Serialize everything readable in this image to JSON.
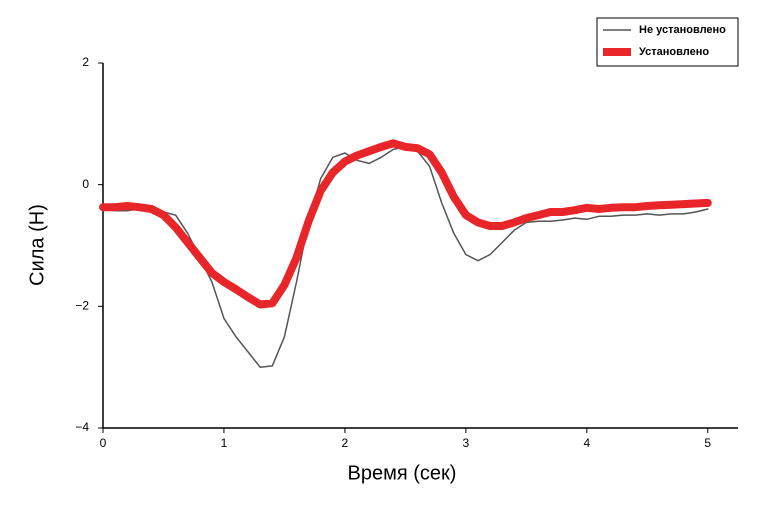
{
  "chart_data": {
    "type": "line",
    "x_label": "Время (сек)",
    "y_label": "Сила (Н)",
    "x": [
      0,
      0.1,
      0.2,
      0.3,
      0.4,
      0.5,
      0.6,
      0.7,
      0.8,
      0.9,
      1,
      1.1,
      1.2,
      1.3,
      1.4,
      1.5,
      1.6,
      1.7,
      1.8,
      1.9,
      2,
      2.1,
      2.2,
      2.3,
      2.4,
      2.5,
      2.6,
      2.7,
      2.8,
      2.9,
      3,
      3.1,
      3.2,
      3.3,
      3.4,
      3.5,
      3.6,
      3.7,
      3.8,
      3.9,
      4,
      4.1,
      4.2,
      4.3,
      4.4,
      4.5,
      4.6,
      4.7,
      4.8,
      4.9,
      5
    ],
    "series": [
      {
        "name": "Не установлено",
        "color": "#555555",
        "width": 1.5,
        "values": [
          -0.4,
          -0.43,
          -0.43,
          -0.4,
          -0.42,
          -0.45,
          -0.5,
          -0.8,
          -1.2,
          -1.6,
          -2.2,
          -2.5,
          -2.75,
          -3.0,
          -2.98,
          -2.5,
          -1.6,
          -0.6,
          0.1,
          0.45,
          0.52,
          0.4,
          0.35,
          0.45,
          0.58,
          0.62,
          0.55,
          0.3,
          -0.3,
          -0.8,
          -1.15,
          -1.25,
          -1.15,
          -0.95,
          -0.75,
          -0.62,
          -0.6,
          -0.6,
          -0.58,
          -0.55,
          -0.57,
          -0.52,
          -0.52,
          -0.5,
          -0.5,
          -0.48,
          -0.5,
          -0.48,
          -0.48,
          -0.45,
          -0.4
        ]
      },
      {
        "name": "Установлено",
        "color": "#e8262a",
        "width": 8,
        "values": [
          -0.37,
          -0.37,
          -0.35,
          -0.37,
          -0.4,
          -0.5,
          -0.7,
          -0.95,
          -1.2,
          -1.45,
          -1.6,
          -1.72,
          -1.85,
          -1.97,
          -1.95,
          -1.65,
          -1.2,
          -0.6,
          -0.1,
          0.2,
          0.38,
          0.48,
          0.55,
          0.62,
          0.68,
          0.62,
          0.6,
          0.5,
          0.2,
          -0.2,
          -0.5,
          -0.62,
          -0.68,
          -0.68,
          -0.62,
          -0.55,
          -0.5,
          -0.45,
          -0.45,
          -0.42,
          -0.38,
          -0.4,
          -0.38,
          -0.37,
          -0.37,
          -0.35,
          -0.34,
          -0.33,
          -0.32,
          -0.31,
          -0.3
        ]
      }
    ],
    "xlim": [
      0,
      5.25
    ],
    "xticks": [
      0,
      1,
      2,
      3,
      4,
      5
    ],
    "ylim": [
      -4,
      2
    ],
    "yticks": [
      {
        "value": -4,
        "label": "−4"
      },
      {
        "value": -2,
        "label": "−2"
      },
      0,
      2
    ],
    "legend": "upper right"
  }
}
